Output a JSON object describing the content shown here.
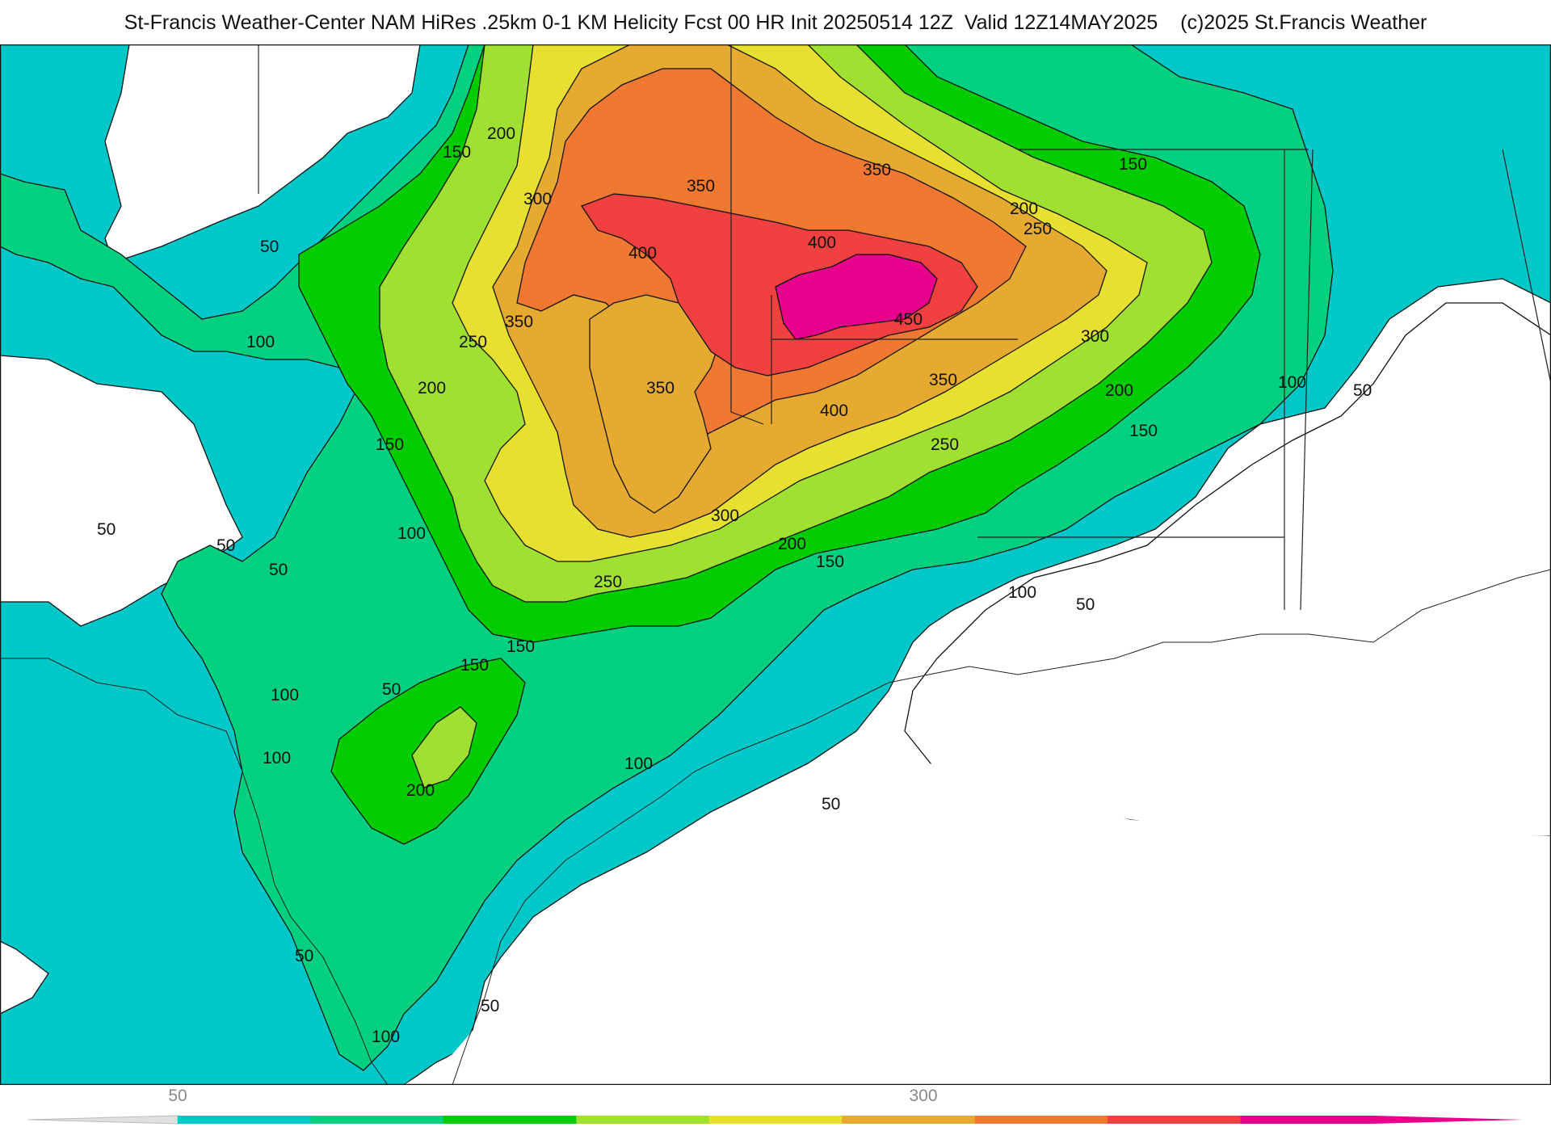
{
  "title": "St-Francis Weather-Center NAM HiRes .25km 0-1 KM Helicity Fcst 00 HR Init 20250514 12Z  Valid 12Z14MAY2025    (c)2025 St.Francis Weather",
  "contour_labels": [
    "50",
    "100",
    "150",
    "200",
    "250",
    "300",
    "350",
    "400",
    "450"
  ],
  "colorbar": {
    "tick_labels": [
      "50",
      "300"
    ],
    "colors": [
      "#00c8c8",
      "#00d080",
      "#00cc00",
      "#a0e030",
      "#e8e030",
      "#e6aa30",
      "#f07830",
      "#f04040",
      "#e8008c"
    ]
  },
  "colors": {
    "land_background": "#ffffff",
    "c50": "#00c8c8",
    "c100": "#00d080",
    "c150": "#00cc00",
    "c200": "#a0e030",
    "c250": "#e8e030",
    "c300": "#e6aa30",
    "c350": "#f07830",
    "c400": "#f04040",
    "c450": "#e8008c"
  }
}
